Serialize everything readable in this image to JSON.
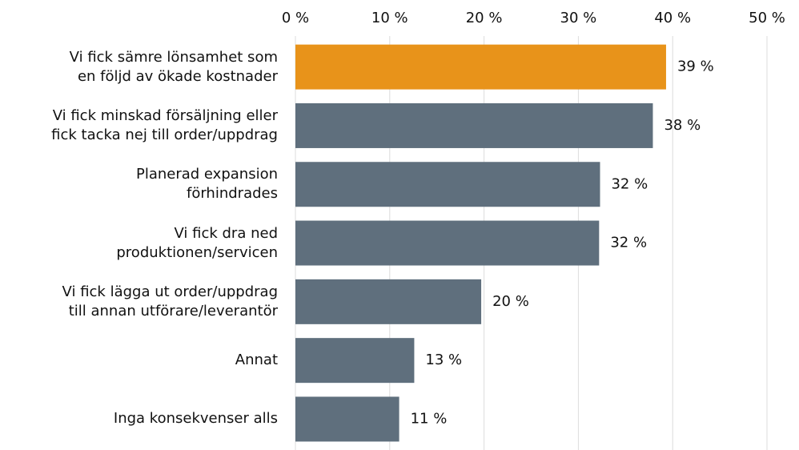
{
  "chart_data": {
    "type": "bar",
    "orientation": "horizontal",
    "categories": [
      "Vi fick sämre lönsamhet som\nen följd av ökade kostnader",
      "Vi fick minskad försäljning eller\nfick tacka nej till order/uppdrag",
      "Planerad expansion\nförhindrades",
      "Vi fick dra ned\nproduktionen/servicen",
      "Vi fick lägga ut order/uppdrag\ntill annan utförare/leverantör",
      "Annat",
      "Inga konsekvenser alls"
    ],
    "values": [
      39.3,
      37.9,
      32.3,
      32.2,
      19.7,
      12.6,
      11.0
    ],
    "value_labels": [
      "39 %",
      "38 %",
      "32 %",
      "32 %",
      "20 %",
      "13 %",
      "11 %"
    ],
    "colors": [
      "#e8931a",
      "#5f6f7d",
      "#5f6f7d",
      "#5f6f7d",
      "#5f6f7d",
      "#5f6f7d",
      "#5f6f7d"
    ],
    "xlim": [
      0,
      50
    ],
    "xticks": [
      {
        "value": 0,
        "label": "0 %"
      },
      {
        "value": 10,
        "label": "10 %"
      },
      {
        "value": 20,
        "label": "20 %"
      },
      {
        "value": 30,
        "label": "30 %"
      },
      {
        "value": 40,
        "label": "40 %"
      },
      {
        "value": 50,
        "label": "50 %"
      }
    ],
    "grid": true
  }
}
